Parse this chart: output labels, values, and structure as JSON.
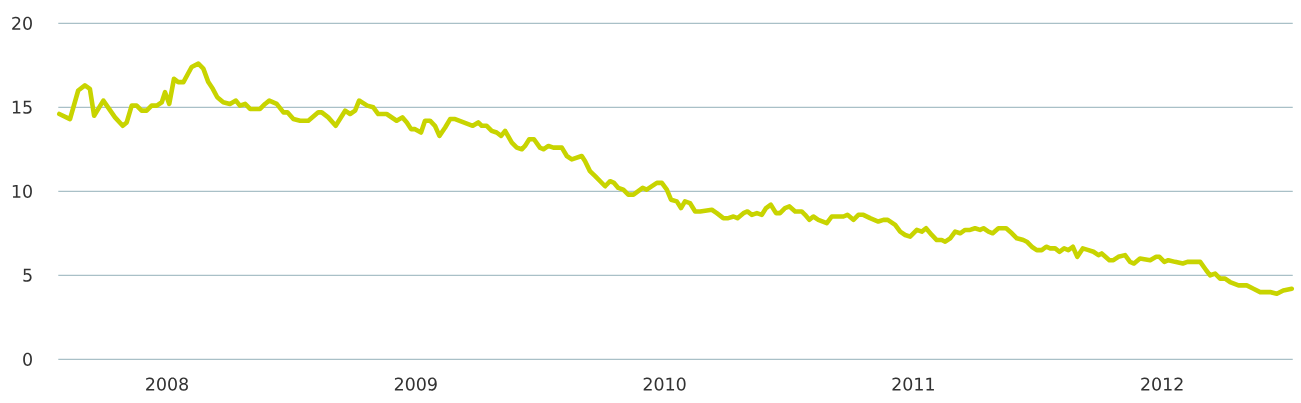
{
  "chart_data": {
    "type": "line",
    "x": [
      2007.567,
      2007.61,
      2007.643,
      2007.67,
      2007.69,
      2007.707,
      2007.744,
      2007.791,
      2007.822,
      2007.838,
      2007.858,
      2007.878,
      2007.898,
      2007.918,
      2007.938,
      2007.959,
      2007.979,
      2007.992,
      2008.009,
      2008.028,
      2008.045,
      2008.066,
      2008.099,
      2008.126,
      2008.146,
      2008.166,
      2008.184,
      2008.202,
      2008.226,
      2008.253,
      2008.277,
      2008.293,
      2008.314,
      2008.334,
      2008.374,
      2008.394,
      2008.411,
      2008.441,
      2008.468,
      2008.484,
      2008.508,
      2008.535,
      2008.568,
      2008.608,
      2008.622,
      2008.648,
      2008.678,
      2008.716,
      2008.736,
      2008.756,
      2008.772,
      2008.805,
      2008.829,
      2008.849,
      2008.883,
      2008.923,
      2008.946,
      2008.964,
      2008.981,
      2008.997,
      2009.021,
      2009.037,
      2009.057,
      2009.077,
      2009.095,
      2009.118,
      2009.138,
      2009.158,
      2009.229,
      2009.251,
      2009.265,
      2009.285,
      2009.305,
      2009.325,
      2009.343,
      2009.359,
      2009.386,
      2009.406,
      2009.426,
      2009.439,
      2009.456,
      2009.475,
      2009.499,
      2009.513,
      2009.533,
      2009.553,
      2009.587,
      2009.607,
      2009.627,
      2009.667,
      2009.68,
      2009.7,
      2009.721,
      2009.761,
      2009.781,
      2009.797,
      2009.814,
      2009.834,
      2009.854,
      2009.875,
      2009.912,
      2009.928,
      2009.969,
      2009.989,
      2010.009,
      2010.026,
      2010.049,
      2010.066,
      2010.082,
      2010.102,
      2010.123,
      2010.143,
      2010.19,
      2010.21,
      2010.236,
      2010.256,
      2010.277,
      2010.293,
      2010.317,
      2010.333,
      2010.351,
      2010.371,
      2010.391,
      2010.408,
      2010.427,
      2010.448,
      2010.464,
      2010.484,
      2010.502,
      2010.525,
      2010.551,
      2010.565,
      2010.582,
      2010.598,
      2010.618,
      2010.652,
      2010.672,
      2010.692,
      2010.719,
      2010.735,
      2010.759,
      2010.779,
      2010.799,
      2010.826,
      2010.859,
      2010.88,
      2010.897,
      2010.927,
      2010.947,
      2010.967,
      2010.987,
      2011.014,
      2011.034,
      2011.051,
      2011.074,
      2011.094,
      2011.114,
      2011.128,
      2011.148,
      2011.168,
      2011.188,
      2011.208,
      2011.228,
      2011.248,
      2011.268,
      2011.282,
      2011.302,
      2011.319,
      2011.342,
      2011.373,
      2011.396,
      2011.416,
      2011.442,
      2011.456,
      2011.476,
      2011.496,
      2011.516,
      2011.534,
      2011.55,
      2011.57,
      2011.587,
      2011.606,
      2011.623,
      2011.641,
      2011.659,
      2011.681,
      2011.704,
      2011.724,
      2011.744,
      2011.757,
      2011.788,
      2011.804,
      2011.824,
      2011.851,
      2011.871,
      2011.887,
      2011.911,
      2011.952,
      2011.976,
      2011.989,
      2012.009,
      2012.025,
      2012.052,
      2012.083,
      2012.102,
      2012.153,
      2012.177,
      2012.193,
      2012.213,
      2012.233,
      2012.253,
      2012.273,
      2012.307,
      2012.34,
      2012.367,
      2012.394,
      2012.434,
      2012.461,
      2012.487,
      2012.521
    ],
    "series": [
      {
        "color": "#c8d400",
        "values": [
          14.6,
          14.3,
          16.0,
          16.3,
          16.1,
          14.5,
          15.4,
          14.4,
          13.9,
          14.1,
          15.1,
          15.1,
          14.8,
          14.8,
          15.1,
          15.1,
          15.3,
          15.9,
          15.2,
          16.7,
          16.5,
          16.5,
          17.4,
          17.6,
          17.3,
          16.5,
          16.1,
          15.6,
          15.3,
          15.2,
          15.4,
          15.1,
          15.2,
          14.9,
          14.9,
          15.2,
          15.4,
          15.2,
          14.7,
          14.7,
          14.3,
          14.2,
          14.2,
          14.7,
          14.7,
          14.4,
          13.9,
          14.8,
          14.6,
          14.8,
          15.4,
          15.1,
          15.0,
          14.6,
          14.6,
          14.2,
          14.4,
          14.1,
          13.7,
          13.7,
          13.5,
          14.2,
          14.2,
          13.9,
          13.3,
          13.8,
          14.3,
          14.3,
          13.9,
          14.1,
          13.9,
          13.9,
          13.6,
          13.5,
          13.3,
          13.6,
          12.9,
          12.6,
          12.5,
          12.7,
          13.1,
          13.1,
          12.6,
          12.5,
          12.7,
          12.6,
          12.6,
          12.1,
          11.9,
          12.1,
          11.8,
          11.2,
          10.9,
          10.3,
          10.6,
          10.5,
          10.2,
          10.1,
          9.8,
          9.8,
          10.2,
          10.1,
          10.5,
          10.5,
          10.1,
          9.5,
          9.4,
          9.0,
          9.4,
          9.3,
          8.8,
          8.8,
          8.9,
          8.7,
          8.4,
          8.4,
          8.5,
          8.4,
          8.7,
          8.8,
          8.6,
          8.7,
          8.6,
          9.0,
          9.2,
          8.7,
          8.7,
          9.0,
          9.1,
          8.8,
          8.8,
          8.6,
          8.3,
          8.5,
          8.3,
          8.1,
          8.5,
          8.5,
          8.5,
          8.6,
          8.3,
          8.6,
          8.6,
          8.4,
          8.2,
          8.3,
          8.3,
          8.0,
          7.6,
          7.4,
          7.3,
          7.7,
          7.6,
          7.8,
          7.4,
          7.1,
          7.1,
          7.0,
          7.2,
          7.6,
          7.5,
          7.7,
          7.7,
          7.8,
          7.7,
          7.8,
          7.6,
          7.5,
          7.8,
          7.8,
          7.5,
          7.2,
          7.1,
          7.0,
          6.7,
          6.5,
          6.5,
          6.7,
          6.6,
          6.6,
          6.4,
          6.6,
          6.5,
          6.7,
          6.1,
          6.6,
          6.5,
          6.4,
          6.2,
          6.3,
          5.9,
          5.9,
          6.1,
          6.2,
          5.8,
          5.7,
          6.0,
          5.9,
          6.1,
          6.1,
          5.8,
          5.9,
          5.8,
          5.7,
          5.8,
          5.8,
          5.3,
          5.0,
          5.1,
          4.8,
          4.8,
          4.6,
          4.4,
          4.4,
          4.2,
          4.0,
          4.0,
          3.9,
          4.1,
          4.2
        ]
      }
    ],
    "xlim": [
      2007.563,
      2012.525
    ],
    "xticks": [
      2008,
      2009,
      2010,
      2011,
      2012
    ],
    "ylim": [
      0,
      20
    ],
    "yticks": [
      0,
      5,
      10,
      15,
      20
    ],
    "grid": "y",
    "line_style": "solid"
  }
}
